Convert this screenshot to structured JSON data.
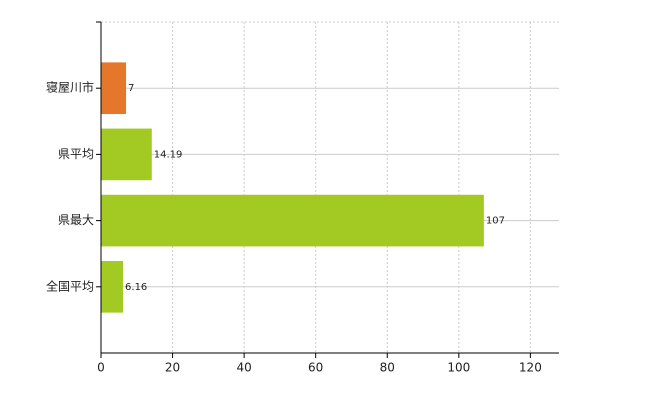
{
  "chart_data": {
    "type": "bar",
    "orientation": "horizontal",
    "categories": [
      "寝屋川市",
      "県平均",
      "県最大",
      "全国平均"
    ],
    "values": [
      7,
      14.19,
      107,
      6.16
    ],
    "colors": [
      "#e5772a",
      "#a3c923",
      "#a3c923",
      "#a3c923"
    ],
    "xlim": [
      0,
      128
    ],
    "xticks": [
      0,
      20,
      40,
      60,
      80,
      100,
      120
    ],
    "grid": true
  }
}
